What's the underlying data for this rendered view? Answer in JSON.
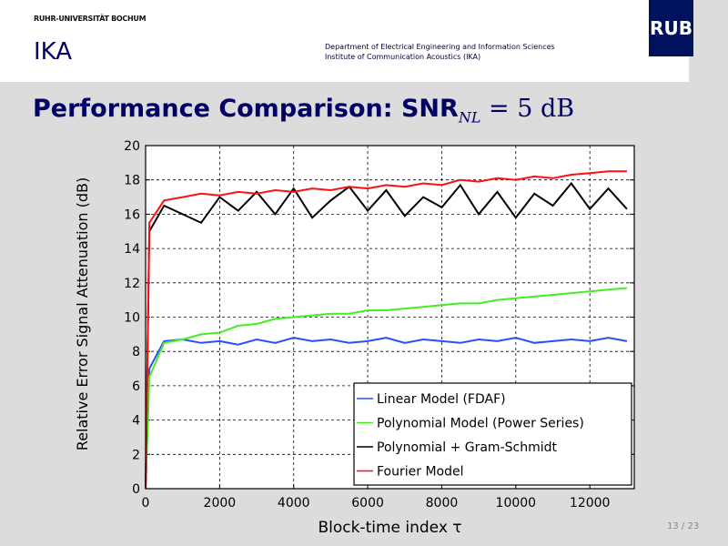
{
  "header": {
    "university": "RUHR-UNIVERSITÄT BOCHUM",
    "institute_short": "IKA",
    "department_line1": "Department of Electrical Engineering and Information Sciences",
    "department_line2": "Institute of Communication Acoustics (IKA)",
    "logo": "RUB",
    "logo_color": "#00115e"
  },
  "slide": {
    "title_main": "Performance Comparison: SNR",
    "title_sub": "NL",
    "title_rest": " = 5 dB",
    "page_number": "13 / 23"
  },
  "chart_data": {
    "type": "line",
    "xlabel": "Block-time index τ",
    "ylabel": "Relative Error Signal Attenuation (dB)",
    "xlim": [
      0,
      13200
    ],
    "ylim": [
      0,
      20
    ],
    "xticks": [
      0,
      2000,
      4000,
      6000,
      8000,
      10000,
      12000
    ],
    "yticks": [
      0,
      2,
      4,
      6,
      8,
      10,
      12,
      14,
      16,
      18,
      20
    ],
    "grid": true,
    "legend_position": "bottom-right",
    "x": [
      0,
      100,
      500,
      1000,
      1500,
      2000,
      2500,
      3000,
      3500,
      4000,
      4500,
      5000,
      5500,
      6000,
      6500,
      7000,
      7500,
      8000,
      8500,
      9000,
      9500,
      10000,
      10500,
      11000,
      11500,
      12000,
      12500,
      13000
    ],
    "series": [
      {
        "name": "Linear Model (FDAF)",
        "color": "#2b4cff",
        "values": [
          0,
          7,
          8.6,
          8.7,
          8.5,
          8.6,
          8.4,
          8.7,
          8.5,
          8.8,
          8.6,
          8.7,
          8.5,
          8.6,
          8.8,
          8.5,
          8.7,
          8.6,
          8.5,
          8.7,
          8.6,
          8.8,
          8.5,
          8.6,
          8.7,
          8.6,
          8.8,
          8.6
        ]
      },
      {
        "name": "Polynomial Model (Power Series)",
        "color": "#44ee22",
        "values": [
          0,
          6.5,
          8.5,
          8.7,
          9.0,
          9.1,
          9.5,
          9.6,
          9.9,
          10.0,
          10.1,
          10.2,
          10.2,
          10.4,
          10.4,
          10.5,
          10.6,
          10.7,
          10.8,
          10.8,
          11.0,
          11.1,
          11.2,
          11.3,
          11.4,
          11.5,
          11.6,
          11.7
        ]
      },
      {
        "name": "Polynomial + Gram-Schmidt",
        "color": "#000000",
        "values": [
          0,
          15,
          16.5,
          16.0,
          15.5,
          17.0,
          16.2,
          17.3,
          16.0,
          17.5,
          15.8,
          16.8,
          17.6,
          16.2,
          17.4,
          15.9,
          17.0,
          16.4,
          17.7,
          16.0,
          17.3,
          15.8,
          17.2,
          16.5,
          17.8,
          16.3,
          17.5,
          16.3
        ]
      },
      {
        "name": "Fourier Model",
        "color": "#ff1010",
        "values": [
          0,
          15.5,
          16.8,
          17.0,
          17.2,
          17.1,
          17.3,
          17.2,
          17.4,
          17.3,
          17.5,
          17.4,
          17.6,
          17.5,
          17.7,
          17.6,
          17.8,
          17.7,
          18.0,
          17.9,
          18.1,
          18.0,
          18.2,
          18.1,
          18.3,
          18.4,
          18.5,
          18.5
        ]
      }
    ]
  }
}
